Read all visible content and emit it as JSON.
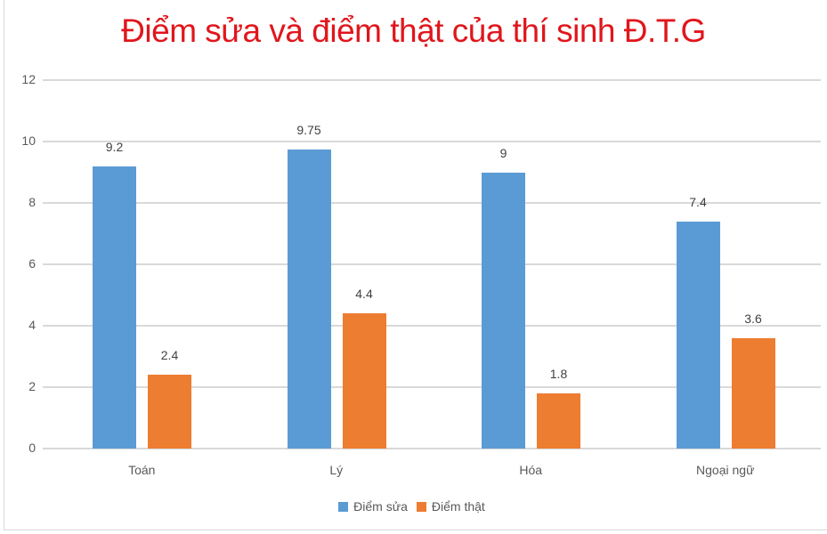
{
  "chart_data": {
    "type": "bar",
    "title": "Điểm sửa và điểm thật của thí sinh Đ.T.G",
    "categories": [
      "Toán",
      "Lý",
      "Hóa",
      "Ngoại ngữ"
    ],
    "series": [
      {
        "name": "Điểm sửa",
        "color": "#5b9bd5",
        "values": [
          9.2,
          9.75,
          9,
          7.4
        ],
        "labels": [
          "9.2",
          "9.75",
          "9",
          "7.4"
        ]
      },
      {
        "name": "Điểm thật",
        "color": "#ed7d31",
        "values": [
          2.4,
          4.4,
          1.8,
          3.6
        ],
        "labels": [
          "2.4",
          "4.4",
          "1.8",
          "3.6"
        ]
      }
    ],
    "xlabel": "",
    "ylabel": "",
    "ylim": [
      0,
      12
    ],
    "yticks": [
      "0",
      "2",
      "4",
      "6",
      "8",
      "10",
      "12"
    ],
    "grid": true,
    "legend_position": "bottom",
    "data_labels": true
  },
  "colors": {
    "title": "#e0161c",
    "series_1": "#5b9bd5",
    "series_2": "#ed7d31",
    "gridline": "#d9d9d9"
  }
}
